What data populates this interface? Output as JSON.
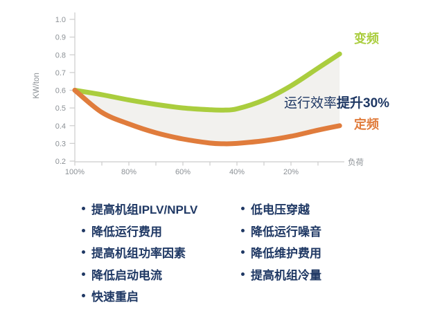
{
  "chart_data": {
    "type": "line",
    "title": "",
    "xlabel": "负荷",
    "ylabel": "KW/ton",
    "ylim": [
      0.2,
      1.0
    ],
    "y_ticks": [
      0.2,
      0.3,
      0.4,
      0.5,
      0.6,
      0.7,
      0.8,
      0.9,
      1.0
    ],
    "x_axis": {
      "direction": "decreasing_load",
      "ticks_percent": [
        100,
        90,
        80,
        70,
        60,
        50,
        40,
        30,
        20,
        10
      ],
      "labeled_ticks_percent": [
        100,
        80,
        60,
        40,
        20
      ]
    },
    "x_percent": [
      100,
      90,
      80,
      70,
      60,
      50,
      45,
      40,
      30,
      20,
      10,
      2
    ],
    "series": [
      {
        "name": "变频",
        "color": "#aacd3e",
        "values": [
          0.6,
          0.575,
          0.545,
          0.52,
          0.5,
          0.49,
          0.488,
          0.495,
          0.545,
          0.625,
          0.725,
          0.805
        ]
      },
      {
        "name": "定频",
        "color": "#e07c3c",
        "values": [
          0.6,
          0.475,
          0.41,
          0.36,
          0.325,
          0.302,
          0.298,
          0.3,
          0.315,
          0.34,
          0.375,
          0.4
        ]
      }
    ],
    "fill_between": true,
    "fill_between_color": "#f2f1ee",
    "annotation": {
      "prefix": "运行效率",
      "highlight": "提升30%",
      "color": "#1f3864"
    },
    "legend_position": "right-of-curves",
    "grid": false
  },
  "bullets": {
    "left": [
      "提高机组IPLV/NPLV",
      "降低运行费用",
      "提高机组功率因素",
      "降低启动电流",
      "快速重启"
    ],
    "right": [
      "低电压穿越",
      "降低运行噪音",
      "降低维护费用",
      "提高机组冷量"
    ]
  },
  "colors": {
    "green": "#aacd3e",
    "orange": "#e07c3c",
    "navy": "#1f3864",
    "axis_line": "#cccccc",
    "tick_text": "#8b9095",
    "background": "#ffffff"
  }
}
